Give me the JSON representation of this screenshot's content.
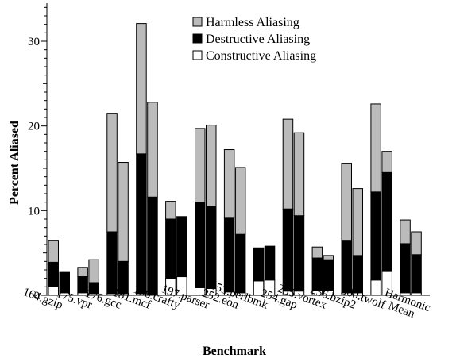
{
  "chart_data": {
    "type": "bar",
    "stacked": true,
    "grouped": true,
    "xlabel": "Benchmark",
    "ylabel": "Percent Aliased",
    "ylim": [
      0,
      34.5
    ],
    "yticks": [
      0,
      10,
      20,
      30
    ],
    "grid": false,
    "legend_position": "top-right",
    "categories": [
      "164.gzip",
      "175.vpr",
      "176.gcc",
      "181.mcf",
      "186.crafty",
      "197.parser",
      "252.eon",
      "253.perlbmk",
      "254.gap",
      "255.vortex",
      "256.bzip2",
      "300.twolf",
      "Harmonic Mean"
    ],
    "bars_per_group": 2,
    "series": [
      {
        "name": "Constructive Aliasing",
        "color": "#ffffff",
        "values": [
          [
            1.0,
            0.3
          ],
          [
            0.3,
            0.2
          ],
          [
            0.2,
            0.2
          ],
          [
            0.2,
            0.1
          ],
          [
            2.0,
            2.2
          ],
          [
            0.9,
            0.8
          ],
          [
            0.4,
            0.3
          ],
          [
            1.7,
            1.8
          ],
          [
            0.5,
            0.5
          ],
          [
            0.6,
            0.6
          ],
          [
            0.3,
            0.3
          ],
          [
            1.8,
            2.9
          ],
          [
            0.3,
            0.3
          ]
        ]
      },
      {
        "name": "Destructive Aliasing",
        "color": "#000000",
        "values": [
          [
            2.9,
            2.5
          ],
          [
            1.9,
            1.3
          ],
          [
            7.3,
            3.8
          ],
          [
            16.5,
            11.5
          ],
          [
            7.0,
            7.1
          ],
          [
            10.1,
            9.7
          ],
          [
            8.8,
            6.9
          ],
          [
            3.9,
            4.0
          ],
          [
            9.7,
            8.9
          ],
          [
            3.8,
            3.6
          ],
          [
            6.2,
            4.4
          ],
          [
            10.4,
            11.6
          ],
          [
            5.8,
            4.5
          ]
        ]
      },
      {
        "name": "Harmless Aliasing",
        "color": "#bbbbbb",
        "values": [
          [
            2.6,
            0.0
          ],
          [
            1.1,
            2.7
          ],
          [
            14.0,
            11.7
          ],
          [
            15.4,
            11.2
          ],
          [
            2.1,
            0.0
          ],
          [
            8.7,
            9.6
          ],
          [
            8.0,
            7.9
          ],
          [
            0.0,
            0.0
          ],
          [
            10.6,
            9.8
          ],
          [
            1.3,
            0.5
          ],
          [
            9.1,
            7.9
          ],
          [
            10.4,
            2.5
          ],
          [
            2.8,
            2.7
          ]
        ]
      }
    ],
    "legend": [
      {
        "label": "Harmless Aliasing",
        "color": "#bbbbbb"
      },
      {
        "label": "Destructive Aliasing",
        "color": "#000000"
      },
      {
        "label": "Constructive Aliasing",
        "color": "#ffffff"
      }
    ]
  }
}
